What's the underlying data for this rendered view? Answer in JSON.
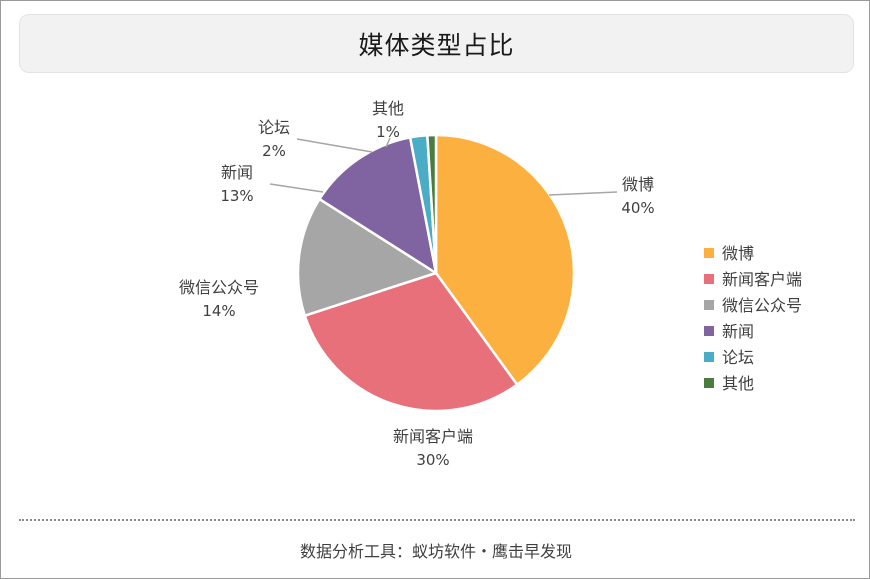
{
  "chart_data": {
    "type": "pie",
    "title": "媒体类型占比",
    "slices": [
      {
        "label": "微博",
        "value": 40,
        "display": "40%",
        "color": "#fbb040"
      },
      {
        "label": "新闻客户端",
        "value": 30,
        "display": "30%",
        "color": "#e8707a"
      },
      {
        "label": "微信公众号",
        "value": 14,
        "display": "14%",
        "color": "#a6a6a6"
      },
      {
        "label": "新闻",
        "value": 13,
        "display": "13%",
        "color": "#8064a2"
      },
      {
        "label": "论坛",
        "value": 2,
        "display": "2%",
        "color": "#4bacc6"
      },
      {
        "label": "其他",
        "value": 1,
        "display": "1%",
        "color": "#4a7c3f"
      }
    ],
    "legend_position": "right"
  },
  "footer": {
    "text": "数据分析工具：蚁坊软件・鹰击早发现"
  }
}
